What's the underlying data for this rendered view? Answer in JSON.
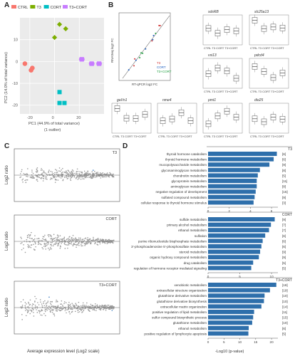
{
  "panels": {
    "a": {
      "letter": "A",
      "legend": [
        {
          "name": "CTRL",
          "color": "#f8766d"
        },
        {
          "name": "T3",
          "color": "#7cae00"
        },
        {
          "name": "CORT",
          "color": "#00bfc4"
        },
        {
          "name": "T3+CORT",
          "color": "#c77cff"
        }
      ],
      "ylabel": "PC2 (14.0% of total variance)",
      "xlabel": "PC1 (44.9% of total variance)",
      "footnote": "(1 outlier)",
      "xticks": [
        "-20",
        "0",
        "20"
      ],
      "yticks": [
        "10",
        "0",
        "-10",
        "-20"
      ],
      "points": [
        {
          "g": 0,
          "x": -24,
          "y": -1
        },
        {
          "g": 0,
          "x": -18,
          "y": -3
        },
        {
          "g": 0,
          "x": -19,
          "y": -4
        },
        {
          "g": 1,
          "x": 4,
          "y": 17
        },
        {
          "g": 1,
          "x": 9,
          "y": 15
        },
        {
          "g": 1,
          "x": 0,
          "y": 11
        },
        {
          "g": 2,
          "x": 4,
          "y": -14
        },
        {
          "g": 2,
          "x": 4,
          "y": -19
        },
        {
          "g": 2,
          "x": 8,
          "y": -19
        },
        {
          "g": 3,
          "x": 22,
          "y": 1
        },
        {
          "g": 3,
          "x": 30,
          "y": -1
        },
        {
          "g": 3,
          "x": 36,
          "y": -1
        }
      ]
    },
    "b": {
      "letter": "B",
      "scatter": {
        "ylabel": "RNASeq log2 FC",
        "xlabel": "RT-qPCR log2 FC",
        "legend": [
          "T3",
          "CORT",
          "T3+CORT"
        ]
      },
      "genes": [
        "sdsRB",
        "slc25a13",
        "vsi13",
        "pdcd4",
        "gaVn1",
        "nme4",
        "pmt1",
        "dio25"
      ],
      "box_xlabels": [
        "CTRL",
        "T3",
        "CORT",
        "T3+CORT"
      ]
    },
    "c": {
      "letter": "C",
      "titles": [
        "T3",
        "CORT",
        "T3+CORT"
      ],
      "ylabel": "Log2 ratio",
      "xlabel": "Average expression level (Log2 scale)"
    },
    "d": {
      "letter": "D",
      "xlabel": "-Log10 (p-value)",
      "groups": [
        {
          "title": "T3",
          "max": 6,
          "ticks": [
            "0",
            "2",
            "4",
            "6"
          ],
          "rows": [
            {
              "term": "thyroid hormone catabolism",
              "v": 6.5,
              "n": "[6]"
            },
            {
              "term": "thyroid hormone metabolism",
              "v": 6.2,
              "n": "[6]"
            },
            {
              "term": "mucopolysaccharide metabolism",
              "v": 5.8,
              "n": "[9]"
            },
            {
              "term": "glycosaminoglycan metabolism",
              "v": 4.9,
              "n": "[8]"
            },
            {
              "term": "chondroitin metabolism",
              "v": 4.7,
              "n": "[5]"
            },
            {
              "term": "glycoprotein metabolism",
              "v": 4.6,
              "n": "[11]"
            },
            {
              "term": "aminoglycan metabolism",
              "v": 4.6,
              "n": "[8]"
            },
            {
              "term": "negative regulation of development",
              "v": 4.5,
              "n": "[15]"
            },
            {
              "term": "sulfated compound metabolism",
              "v": 4.4,
              "n": "[9]"
            },
            {
              "term": "cellular response to thyroid hormone stimulus",
              "v": 4.3,
              "n": "[3]"
            }
          ]
        },
        {
          "title": "CORT",
          "max": 10,
          "ticks": [
            "0",
            "5",
            "10"
          ],
          "rows": [
            {
              "term": "sulfide metabolism",
              "v": 10.5,
              "n": "[9]"
            },
            {
              "term": "primary alcohol metabolism",
              "v": 9.9,
              "n": "[7]"
            },
            {
              "term": "ethanol metabolism",
              "v": 9.6,
              "n": "[7]"
            },
            {
              "term": "sulfation",
              "v": 9.0,
              "n": "[6]"
            },
            {
              "term": "purine ribonucleotide bisphosphate metabolism",
              "v": 8.6,
              "n": "[6]"
            },
            {
              "term": "3'-phosphoadenosine 5'-phosphosulfate metabolism",
              "v": 8.4,
              "n": "[6]"
            },
            {
              "term": "steroid metabolism",
              "v": 8.2,
              "n": "[9]"
            },
            {
              "term": "organic hydroxy compound metabolism",
              "v": 8.0,
              "n": "[9]"
            },
            {
              "term": "drug catabolism",
              "v": 7.1,
              "n": "[5]"
            },
            {
              "term": "regulation of hormone receptor mediated signaling",
              "v": 6.8,
              "n": "[5]"
            }
          ]
        },
        {
          "title": "T3+CORT",
          "max": 20,
          "ticks": [
            "0",
            "5",
            "10",
            "15",
            "20"
          ],
          "rows": [
            {
              "term": "xenobiotic metabolism",
              "v": 21.5,
              "n": "[18]"
            },
            {
              "term": "extracellular structure organization",
              "v": 19.5,
              "n": "[19]"
            },
            {
              "term": "glutathione derivative metabolism",
              "v": 17.8,
              "n": "[10]"
            },
            {
              "term": "glutathione derivative biosynthesis",
              "v": 17.6,
              "n": "[10]"
            },
            {
              "term": "extracellular matrix organization",
              "v": 16.8,
              "n": "[14]"
            },
            {
              "term": "positive regulation of lipid metabolism",
              "v": 14.5,
              "n": "[11]"
            },
            {
              "term": "sulfur compound biosynthetic process",
              "v": 14.2,
              "n": "[15]"
            },
            {
              "term": "glutathione metabolism",
              "v": 13.9,
              "n": "[10]"
            },
            {
              "term": "ethanol metabolism",
              "v": 12.8,
              "n": "[6]"
            },
            {
              "term": "positive regulation of lymphocyte apoptosis",
              "v": 12.7,
              "n": "[5]"
            }
          ]
        }
      ]
    }
  }
}
